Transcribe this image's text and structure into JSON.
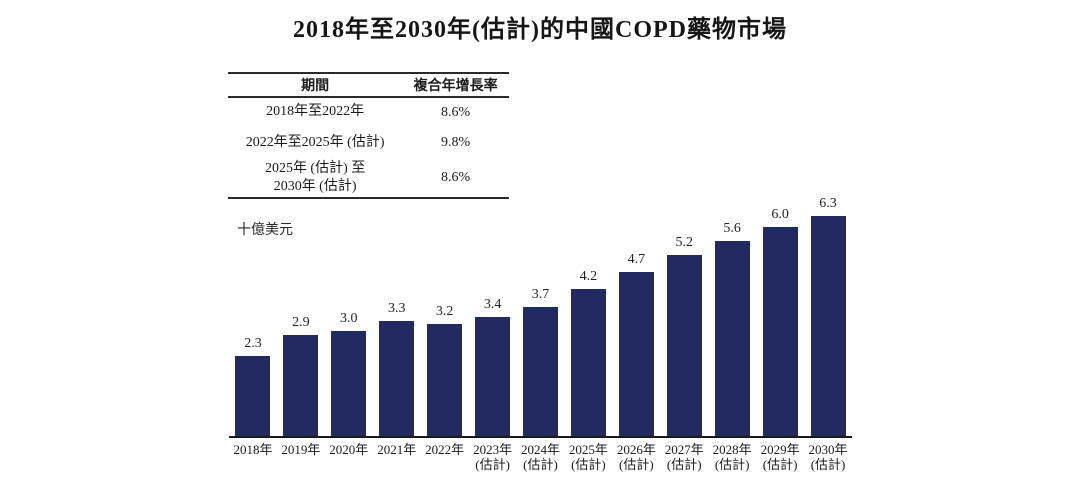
{
  "title": "2018年至2030年(估計)的中國COPD藥物市場",
  "cagr_table": {
    "headers": [
      "期間",
      "複合年增長率"
    ],
    "rows": [
      {
        "period_lines": [
          "2018年至2022年"
        ],
        "cagr": "8.6%"
      },
      {
        "period_lines": [
          "2022年至2025年 (估計)"
        ],
        "cagr": "9.8%"
      },
      {
        "period_lines": [
          "2025年 (估計) 至",
          "2030年 (估計)"
        ],
        "cagr": "8.6%"
      }
    ]
  },
  "chart_data": {
    "type": "bar",
    "title": "2018年至2030年(估計)的中國COPD藥物市場",
    "ylabel": "十億美元",
    "xlabel": "",
    "categories": [
      {
        "year": "2018年",
        "note": ""
      },
      {
        "year": "2019年",
        "note": ""
      },
      {
        "year": "2020年",
        "note": ""
      },
      {
        "year": "2021年",
        "note": ""
      },
      {
        "year": "2022年",
        "note": ""
      },
      {
        "year": "2023年",
        "note": "(估計)"
      },
      {
        "year": "2024年",
        "note": "(估計)"
      },
      {
        "year": "2025年",
        "note": "(估計)"
      },
      {
        "year": "2026年",
        "note": "(估計)"
      },
      {
        "year": "2027年",
        "note": "(估計)"
      },
      {
        "year": "2028年",
        "note": "(估計)"
      },
      {
        "year": "2029年",
        "note": "(估計)"
      },
      {
        "year": "2030年",
        "note": "(估計)"
      }
    ],
    "values": [
      2.3,
      2.9,
      3.0,
      3.3,
      3.2,
      3.4,
      3.7,
      4.2,
      4.7,
      5.2,
      5.6,
      6.0,
      6.3
    ],
    "value_label_format": "one_decimal",
    "ylim": [
      0,
      6.9
    ],
    "grid": false,
    "legend_position": "none",
    "bar_color": "#212b61"
  }
}
